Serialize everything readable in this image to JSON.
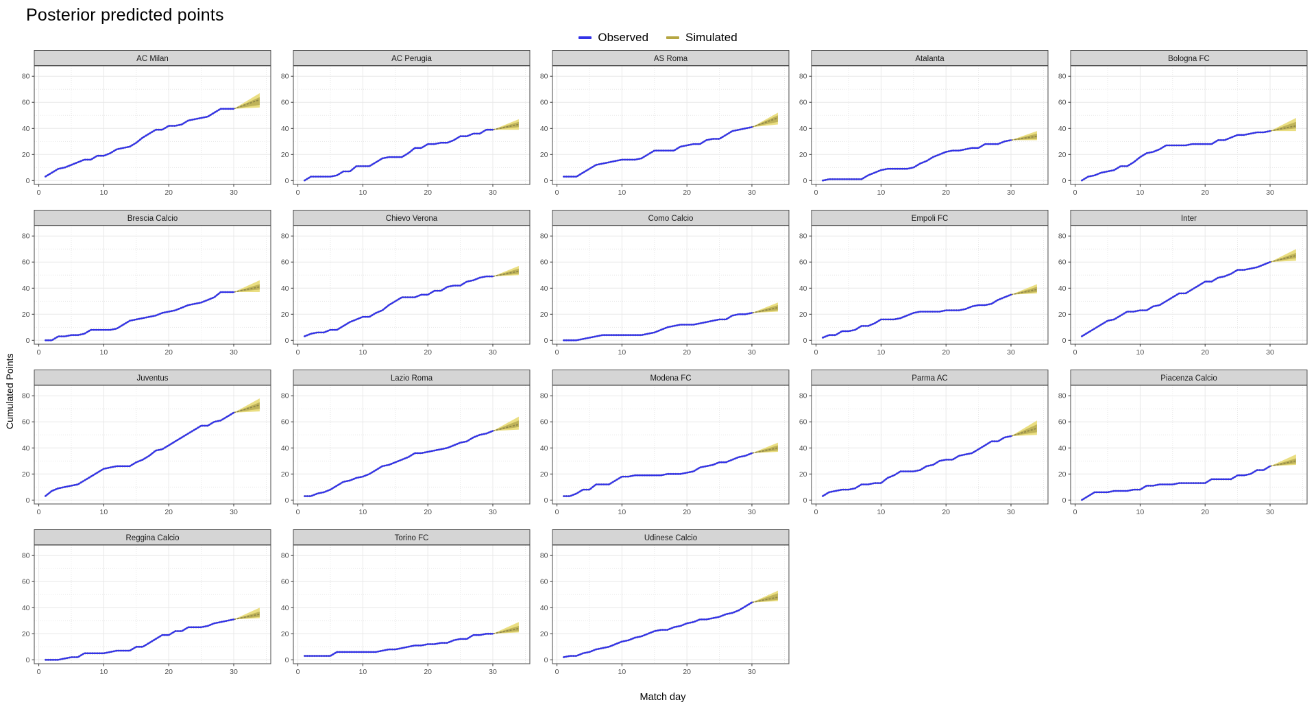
{
  "page": {
    "title": "Posterior predicted points"
  },
  "axes": {
    "x_label": "Match day",
    "y_label": "Cumulated Points"
  },
  "legend": {
    "items": [
      {
        "label": "Observed",
        "color": "#3232E8"
      },
      {
        "label": "Simulated",
        "color": "#B5A642"
      }
    ]
  },
  "chart_data": {
    "type": "line",
    "title": "Posterior predicted points",
    "xlabel": "Match day",
    "ylabel": "Cumulated Points",
    "x_range": [
      -0.7,
      35.7
    ],
    "y_range": [
      -3,
      88
    ],
    "x_ticks": [
      0,
      10,
      20,
      30
    ],
    "x_minor": [
      5,
      15,
      25,
      35
    ],
    "y_ticks": [
      0,
      20,
      40,
      60,
      80
    ],
    "y_minor": [
      10,
      30,
      50,
      70
    ],
    "observed_day_start": 1,
    "sim_day_start": 30,
    "sim_day_end": 34,
    "legend_position": "top-center",
    "grid": true,
    "colors": {
      "observed_line": "#3232E8",
      "observed_shadow": "#9a9a9a",
      "sim_outer_band": "#E9DC7A",
      "sim_inner_band": "#B4A74F",
      "sim_median_line": "#8F874A",
      "strip_bg": "#D5D5D5",
      "strip_border": "#3c3c3c",
      "panel_border": "#595959",
      "grid_major": "#E8E8E8",
      "grid_minor": "#E2E2E2",
      "tick_text": "#4d4d4d",
      "tick_mark": "#333333"
    },
    "facets": [
      {
        "name": "AC Milan",
        "observed": [
          3,
          6,
          9,
          10,
          12,
          14,
          16,
          16,
          19,
          19,
          21,
          24,
          25,
          26,
          29,
          33,
          36,
          39,
          39,
          42,
          42,
          43,
          46,
          47,
          48,
          49,
          52,
          55,
          55,
          55
        ],
        "sim": {
          "median_end": 62,
          "inner_end": [
            58,
            64
          ],
          "outer_end": [
            56,
            67
          ]
        }
      },
      {
        "name": "AC Perugia",
        "observed": [
          0,
          3,
          3,
          3,
          3,
          4,
          7,
          7,
          11,
          11,
          11,
          14,
          17,
          18,
          18,
          18,
          21,
          25,
          25,
          28,
          28,
          29,
          29,
          31,
          34,
          34,
          36,
          36,
          39,
          39
        ],
        "sim": {
          "median_end": 43,
          "inner_end": [
            41,
            45
          ],
          "outer_end": [
            39,
            47
          ]
        }
      },
      {
        "name": "AS Roma",
        "observed": [
          3,
          3,
          3,
          6,
          9,
          12,
          13,
          14,
          15,
          16,
          16,
          16,
          17,
          20,
          23,
          23,
          23,
          23,
          26,
          27,
          28,
          28,
          31,
          32,
          32,
          35,
          38,
          39,
          40,
          41
        ],
        "sim": {
          "median_end": 48,
          "inner_end": [
            45,
            50
          ],
          "outer_end": [
            43,
            52
          ]
        }
      },
      {
        "name": "Atalanta",
        "observed": [
          0,
          1,
          1,
          1,
          1,
          1,
          1,
          4,
          6,
          8,
          9,
          9,
          9,
          9,
          10,
          13,
          15,
          18,
          20,
          22,
          23,
          23,
          24,
          25,
          25,
          28,
          28,
          28,
          30,
          31
        ],
        "sim": {
          "median_end": 34,
          "inner_end": [
            32,
            36
          ],
          "outer_end": [
            31,
            38
          ]
        }
      },
      {
        "name": "Bologna FC",
        "observed": [
          0,
          3,
          4,
          6,
          7,
          8,
          11,
          11,
          14,
          18,
          21,
          22,
          24,
          27,
          27,
          27,
          27,
          28,
          28,
          28,
          28,
          31,
          31,
          33,
          35,
          35,
          36,
          37,
          37,
          38
        ],
        "sim": {
          "median_end": 42,
          "inner_end": [
            40,
            45
          ],
          "outer_end": [
            38,
            48
          ]
        }
      },
      {
        "name": "Brescia Calcio",
        "observed": [
          0,
          0,
          3,
          3,
          4,
          4,
          5,
          8,
          8,
          8,
          8,
          9,
          12,
          15,
          16,
          17,
          18,
          19,
          21,
          22,
          23,
          25,
          27,
          28,
          29,
          31,
          33,
          37,
          37,
          37
        ],
        "sim": {
          "median_end": 41,
          "inner_end": [
            39,
            43
          ],
          "outer_end": [
            37,
            46
          ]
        }
      },
      {
        "name": "Chievo Verona",
        "observed": [
          3,
          5,
          6,
          6,
          8,
          8,
          11,
          14,
          16,
          18,
          18,
          21,
          23,
          27,
          30,
          33,
          33,
          33,
          35,
          35,
          38,
          38,
          41,
          42,
          42,
          45,
          46,
          48,
          49,
          49
        ],
        "sim": {
          "median_end": 53,
          "inner_end": [
            51,
            55
          ],
          "outer_end": [
            50,
            57
          ]
        }
      },
      {
        "name": "Como Calcio",
        "observed": [
          0,
          0,
          0,
          1,
          2,
          3,
          4,
          4,
          4,
          4,
          4,
          4,
          4,
          5,
          6,
          8,
          10,
          11,
          12,
          12,
          12,
          13,
          14,
          15,
          16,
          16,
          19,
          20,
          20,
          21
        ],
        "sim": {
          "median_end": 25,
          "inner_end": [
            23,
            27
          ],
          "outer_end": [
            22,
            29
          ]
        }
      },
      {
        "name": "Empoli FC",
        "observed": [
          2,
          4,
          4,
          7,
          7,
          8,
          11,
          11,
          13,
          16,
          16,
          16,
          17,
          19,
          21,
          22,
          22,
          22,
          22,
          23,
          23,
          23,
          24,
          26,
          27,
          27,
          28,
          31,
          33,
          35
        ],
        "sim": {
          "median_end": 39,
          "inner_end": [
            37,
            41
          ],
          "outer_end": [
            36,
            43
          ]
        }
      },
      {
        "name": "Inter",
        "observed": [
          3,
          6,
          9,
          12,
          15,
          16,
          19,
          22,
          22,
          23,
          23,
          26,
          27,
          30,
          33,
          36,
          36,
          39,
          42,
          45,
          45,
          48,
          49,
          51,
          54,
          54,
          55,
          56,
          58,
          60
        ],
        "sim": {
          "median_end": 65,
          "inner_end": [
            63,
            67
          ],
          "outer_end": [
            61,
            70
          ]
        }
      },
      {
        "name": "Juventus",
        "observed": [
          3,
          7,
          9,
          10,
          11,
          12,
          15,
          18,
          21,
          24,
          25,
          26,
          26,
          26,
          29,
          31,
          34,
          38,
          39,
          42,
          45,
          48,
          51,
          54,
          57,
          57,
          60,
          61,
          64,
          67
        ],
        "sim": {
          "median_end": 73,
          "inner_end": [
            70,
            75
          ],
          "outer_end": [
            68,
            78
          ]
        }
      },
      {
        "name": "Lazio Roma",
        "observed": [
          3,
          3,
          5,
          6,
          8,
          11,
          14,
          15,
          17,
          18,
          20,
          23,
          26,
          27,
          29,
          31,
          33,
          36,
          36,
          37,
          38,
          39,
          40,
          42,
          44,
          45,
          48,
          50,
          51,
          53
        ],
        "sim": {
          "median_end": 58,
          "inner_end": [
            56,
            61
          ],
          "outer_end": [
            54,
            64
          ]
        }
      },
      {
        "name": "Modena FC",
        "observed": [
          3,
          3,
          5,
          8,
          8,
          12,
          12,
          12,
          15,
          18,
          18,
          19,
          19,
          19,
          19,
          19,
          20,
          20,
          20,
          21,
          22,
          25,
          26,
          27,
          29,
          29,
          31,
          33,
          34,
          36
        ],
        "sim": {
          "median_end": 40,
          "inner_end": [
            38,
            42
          ],
          "outer_end": [
            37,
            44
          ]
        }
      },
      {
        "name": "Parma AC",
        "observed": [
          3,
          6,
          7,
          8,
          8,
          9,
          12,
          12,
          13,
          13,
          17,
          19,
          22,
          22,
          22,
          23,
          26,
          27,
          30,
          31,
          31,
          34,
          35,
          36,
          39,
          42,
          45,
          45,
          48,
          49
        ],
        "sim": {
          "median_end": 55,
          "inner_end": [
            52,
            58
          ],
          "outer_end": [
            50,
            61
          ]
        }
      },
      {
        "name": "Piacenza Calcio",
        "observed": [
          0,
          3,
          6,
          6,
          6,
          7,
          7,
          7,
          8,
          8,
          11,
          11,
          12,
          12,
          12,
          13,
          13,
          13,
          13,
          13,
          16,
          16,
          16,
          16,
          19,
          19,
          20,
          23,
          23,
          26
        ],
        "sim": {
          "median_end": 30,
          "inner_end": [
            28,
            32
          ],
          "outer_end": [
            27,
            35
          ]
        }
      },
      {
        "name": "Reggina Calcio",
        "observed": [
          0,
          0,
          0,
          1,
          2,
          2,
          5,
          5,
          5,
          5,
          6,
          7,
          7,
          7,
          10,
          10,
          13,
          16,
          19,
          19,
          22,
          22,
          25,
          25,
          25,
          26,
          28,
          29,
          30,
          31
        ],
        "sim": {
          "median_end": 35,
          "inner_end": [
            33,
            37
          ],
          "outer_end": [
            32,
            40
          ]
        }
      },
      {
        "name": "Torino FC",
        "observed": [
          3,
          3,
          3,
          3,
          3,
          6,
          6,
          6,
          6,
          6,
          6,
          6,
          7,
          8,
          8,
          9,
          10,
          11,
          11,
          12,
          12,
          13,
          13,
          15,
          16,
          16,
          19,
          19,
          20,
          20
        ],
        "sim": {
          "median_end": 24,
          "inner_end": [
            22,
            26
          ],
          "outer_end": [
            21,
            29
          ]
        }
      },
      {
        "name": "Udinese Calcio",
        "observed": [
          2,
          3,
          3,
          5,
          6,
          8,
          9,
          10,
          12,
          14,
          15,
          17,
          18,
          20,
          22,
          23,
          23,
          25,
          26,
          28,
          29,
          31,
          31,
          32,
          33,
          35,
          36,
          38,
          41,
          44
        ],
        "sim": {
          "median_end": 48,
          "inner_end": [
            46,
            51
          ],
          "outer_end": [
            45,
            53
          ]
        }
      }
    ]
  }
}
